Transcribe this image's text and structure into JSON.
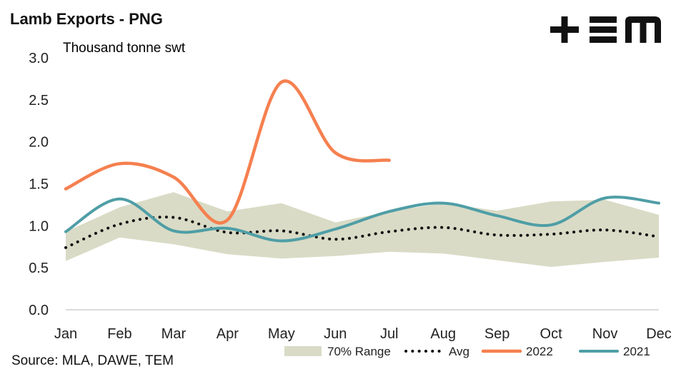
{
  "title": "Lamb Exports - PNG",
  "source": "Source: MLA, DAWE, TEM",
  "logo_text": "TEM",
  "colors": {
    "range": "#d9dbc6",
    "avg": "#111111",
    "s2022": "#f5804f",
    "s2021": "#4f9ea6"
  },
  "chart_data": {
    "type": "line",
    "title": "Lamb Exports - PNG",
    "ylabel": "Thousand tonne swt",
    "xlabel": "",
    "ylim": [
      0,
      3.0
    ],
    "yticks": [
      "0.0",
      "0.5",
      "1.0",
      "1.5",
      "2.0",
      "2.5",
      "3.0"
    ],
    "categories": [
      "Jan",
      "Feb",
      "Mar",
      "Apr",
      "May",
      "Jun",
      "Jul",
      "Aug",
      "Sep",
      "Oct",
      "Nov",
      "Dec"
    ],
    "grid": false,
    "legend": "bottom",
    "range": {
      "name": "70% Range",
      "lower": [
        0.58,
        0.86,
        0.78,
        0.66,
        0.61,
        0.64,
        0.69,
        0.67,
        0.59,
        0.51,
        0.57,
        0.62
      ],
      "upper": [
        0.93,
        1.22,
        1.4,
        1.17,
        1.27,
        1.04,
        1.17,
        1.27,
        1.18,
        1.29,
        1.31,
        1.13
      ]
    },
    "series": [
      {
        "name": "Avg",
        "style": "dotted",
        "values": [
          0.74,
          1.02,
          1.1,
          0.92,
          0.94,
          0.84,
          0.93,
          0.98,
          0.89,
          0.9,
          0.95,
          0.87
        ]
      },
      {
        "name": "2022",
        "style": "solid",
        "values": [
          1.44,
          1.74,
          1.58,
          1.07,
          2.71,
          1.87,
          1.78,
          null,
          null,
          null,
          null,
          null
        ]
      },
      {
        "name": "2021",
        "style": "solid",
        "values": [
          0.93,
          1.32,
          0.94,
          0.97,
          0.82,
          0.96,
          1.17,
          1.27,
          1.12,
          1.01,
          1.33,
          1.27
        ]
      }
    ]
  }
}
